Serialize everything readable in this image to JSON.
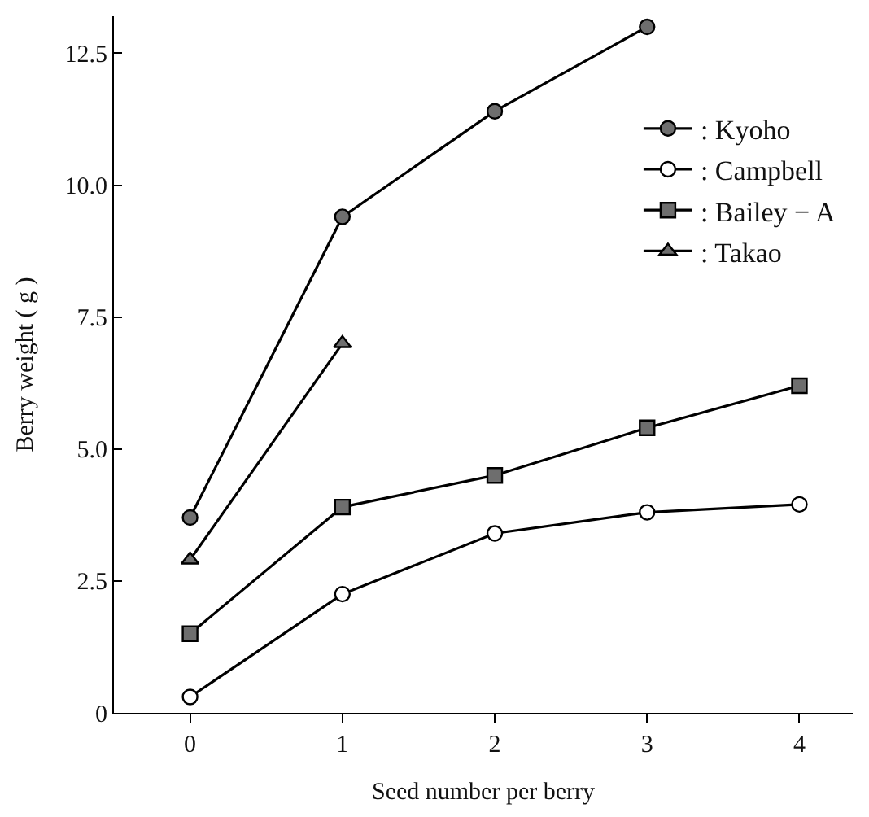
{
  "chart_data": {
    "type": "line",
    "xlabel": "Seed number per berry",
    "ylabel": "Berry weight ( g )",
    "xlim": [
      -0.5,
      4.35
    ],
    "xticks": [
      0,
      1,
      2,
      3,
      4
    ],
    "ylim": [
      0,
      13.2
    ],
    "yticks": [
      {
        "value": 0,
        "label": "0"
      },
      {
        "value": 2.5,
        "label": "2.5"
      },
      {
        "value": 5,
        "label": "5.0"
      },
      {
        "value": 7.5,
        "label": "7.5"
      },
      {
        "value": 10,
        "label": "10.0"
      },
      {
        "value": 12.5,
        "label": "12.5"
      }
    ],
    "legend": "top right",
    "line_style": "solid",
    "series": [
      {
        "name": ": Kyoho",
        "color": "#6e6e6e",
        "marker": "circle",
        "x": [
          0,
          1,
          2,
          3
        ],
        "values": [
          3.7,
          9.4,
          11.4,
          13.0
        ]
      },
      {
        "name": ": Campbell",
        "color": "#ffffff",
        "marker": "circle",
        "x": [
          0,
          1,
          2,
          3,
          4
        ],
        "values": [
          0.3,
          2.25,
          3.4,
          3.8,
          3.95
        ]
      },
      {
        "name": ": Bailey − A",
        "color": "#6e6e6e",
        "marker": "square",
        "x": [
          0,
          1,
          2,
          3,
          4
        ],
        "values": [
          1.5,
          3.9,
          4.5,
          5.4,
          6.2
        ]
      },
      {
        "name": ": Takao",
        "color": "#6e6e6e",
        "marker": "triangle",
        "x": [
          0,
          1
        ],
        "values": [
          2.9,
          7.0
        ]
      }
    ]
  }
}
